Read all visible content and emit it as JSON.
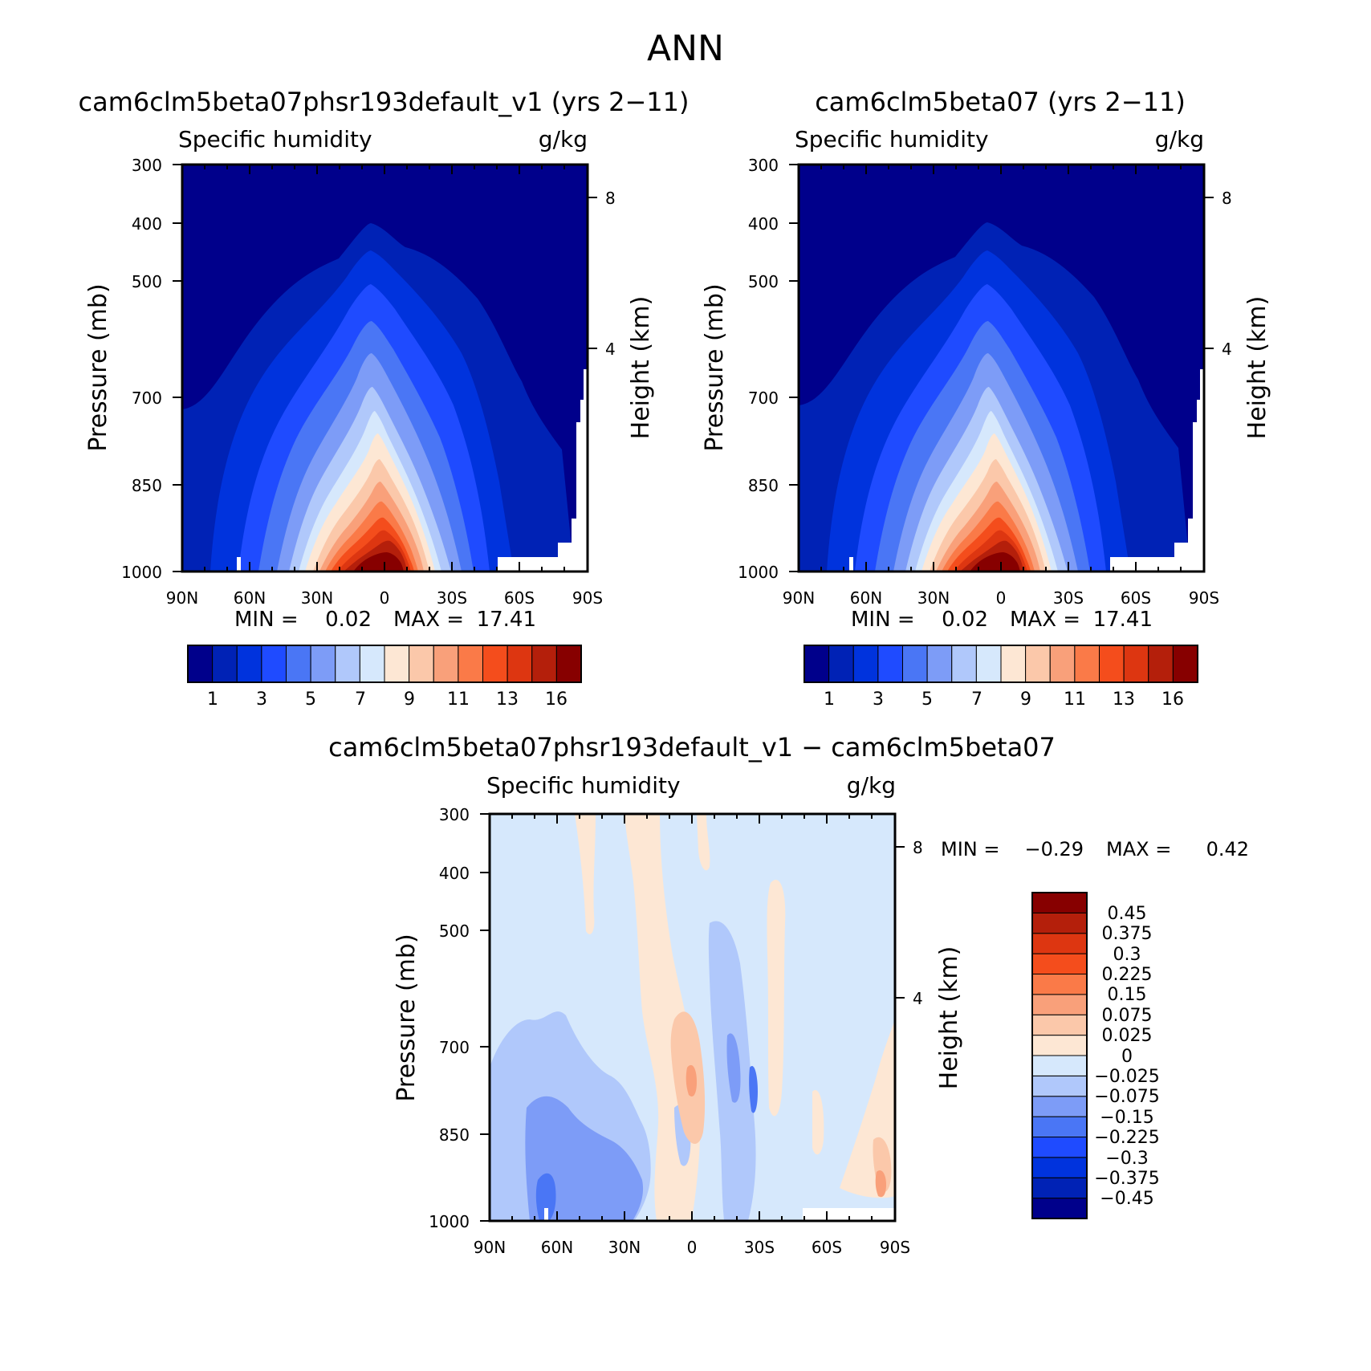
{
  "figure": {
    "title": "ANN"
  },
  "chart_data": [
    {
      "type": "heatmap",
      "title": "cam6clm5beta07phsr193default_v1 (yrs 2−11)",
      "variable": "Specific humidity",
      "units": "g/kg",
      "ylabel": "Pressure (mb)",
      "ylabel_right": "Height (km)",
      "x_ticks": [
        "90N",
        "60N",
        "30N",
        "0",
        "30S",
        "60S",
        "90S"
      ],
      "y_ticks": [
        "300",
        "400",
        "500",
        "700",
        "850",
        "1000"
      ],
      "y_right_ticks": [
        "8",
        "4"
      ],
      "ylim": [
        300,
        1000
      ],
      "yscale": "log",
      "min_label": "MIN =",
      "min_value": "0.02",
      "max_label": "MAX =",
      "max_value": "17.41",
      "levels": [
        1,
        2,
        3,
        4,
        5,
        6,
        7,
        8,
        9,
        10,
        11,
        12,
        13,
        14,
        16
      ],
      "colorbar_labels": [
        "1",
        "3",
        "5",
        "7",
        "9",
        "11",
        "13",
        "16"
      ],
      "colors": [
        "#00008b",
        "#0022b5",
        "#0033dd",
        "#1f4bff",
        "#4a76f5",
        "#7d9cf7",
        "#b0c8fb",
        "#d6e8fc",
        "#fde7d4",
        "#fbc8aa",
        "#f9a07a",
        "#fa7a48",
        "#f44d1c",
        "#dd3611",
        "#b41f0b",
        "#870000"
      ]
    },
    {
      "type": "heatmap",
      "title": "cam6clm5beta07 (yrs 2−11)",
      "variable": "Specific humidity",
      "units": "g/kg",
      "ylabel": "Pressure (mb)",
      "ylabel_right": "Height (km)",
      "x_ticks": [
        "90N",
        "60N",
        "30N",
        "0",
        "30S",
        "60S",
        "90S"
      ],
      "y_ticks": [
        "300",
        "400",
        "500",
        "700",
        "850",
        "1000"
      ],
      "y_right_ticks": [
        "8",
        "4"
      ],
      "ylim": [
        300,
        1000
      ],
      "yscale": "log",
      "min_label": "MIN =",
      "min_value": "0.02",
      "max_label": "MAX =",
      "max_value": "17.41",
      "levels": [
        1,
        2,
        3,
        4,
        5,
        6,
        7,
        8,
        9,
        10,
        11,
        12,
        13,
        14,
        16
      ],
      "colorbar_labels": [
        "1",
        "3",
        "5",
        "7",
        "9",
        "11",
        "13",
        "16"
      ],
      "colors": [
        "#00008b",
        "#0022b5",
        "#0033dd",
        "#1f4bff",
        "#4a76f5",
        "#7d9cf7",
        "#b0c8fb",
        "#d6e8fc",
        "#fde7d4",
        "#fbc8aa",
        "#f9a07a",
        "#fa7a48",
        "#f44d1c",
        "#dd3611",
        "#b41f0b",
        "#870000"
      ]
    },
    {
      "type": "heatmap",
      "title": "cam6clm5beta07phsr193default_v1 − cam6clm5beta07",
      "variable": "Specific humidity",
      "units": "g/kg",
      "ylabel": "Pressure (mb)",
      "ylabel_right": "Height (km)",
      "x_ticks": [
        "90N",
        "60N",
        "30N",
        "0",
        "30S",
        "60S",
        "90S"
      ],
      "y_ticks": [
        "300",
        "400",
        "500",
        "700",
        "850",
        "1000"
      ],
      "y_right_ticks": [
        "8",
        "4"
      ],
      "ylim": [
        300,
        1000
      ],
      "yscale": "log",
      "min_label": "MIN =",
      "min_value": "−0.29",
      "max_label": "MAX =",
      "max_value": "0.42",
      "levels": [
        -0.45,
        -0.375,
        -0.3,
        -0.225,
        -0.15,
        -0.075,
        -0.025,
        0,
        0.025,
        0.075,
        0.15,
        0.225,
        0.3,
        0.375,
        0.45
      ],
      "colorbar_labels": [
        "−0.45",
        "−0.375",
        "−0.3",
        "−0.225",
        "−0.15",
        "−0.075",
        "−0.025",
        "0",
        "0.025",
        "0.075",
        "0.15",
        "0.225",
        "0.3",
        "0.375",
        "0.45"
      ],
      "colors": [
        "#00008b",
        "#0022b5",
        "#0033dd",
        "#1f4bff",
        "#4a76f5",
        "#7d9cf7",
        "#b0c8fb",
        "#d6e8fc",
        "#fde7d4",
        "#fbc8aa",
        "#f9a07a",
        "#fa7a48",
        "#f44d1c",
        "#dd3611",
        "#b41f0b",
        "#870000"
      ]
    }
  ]
}
